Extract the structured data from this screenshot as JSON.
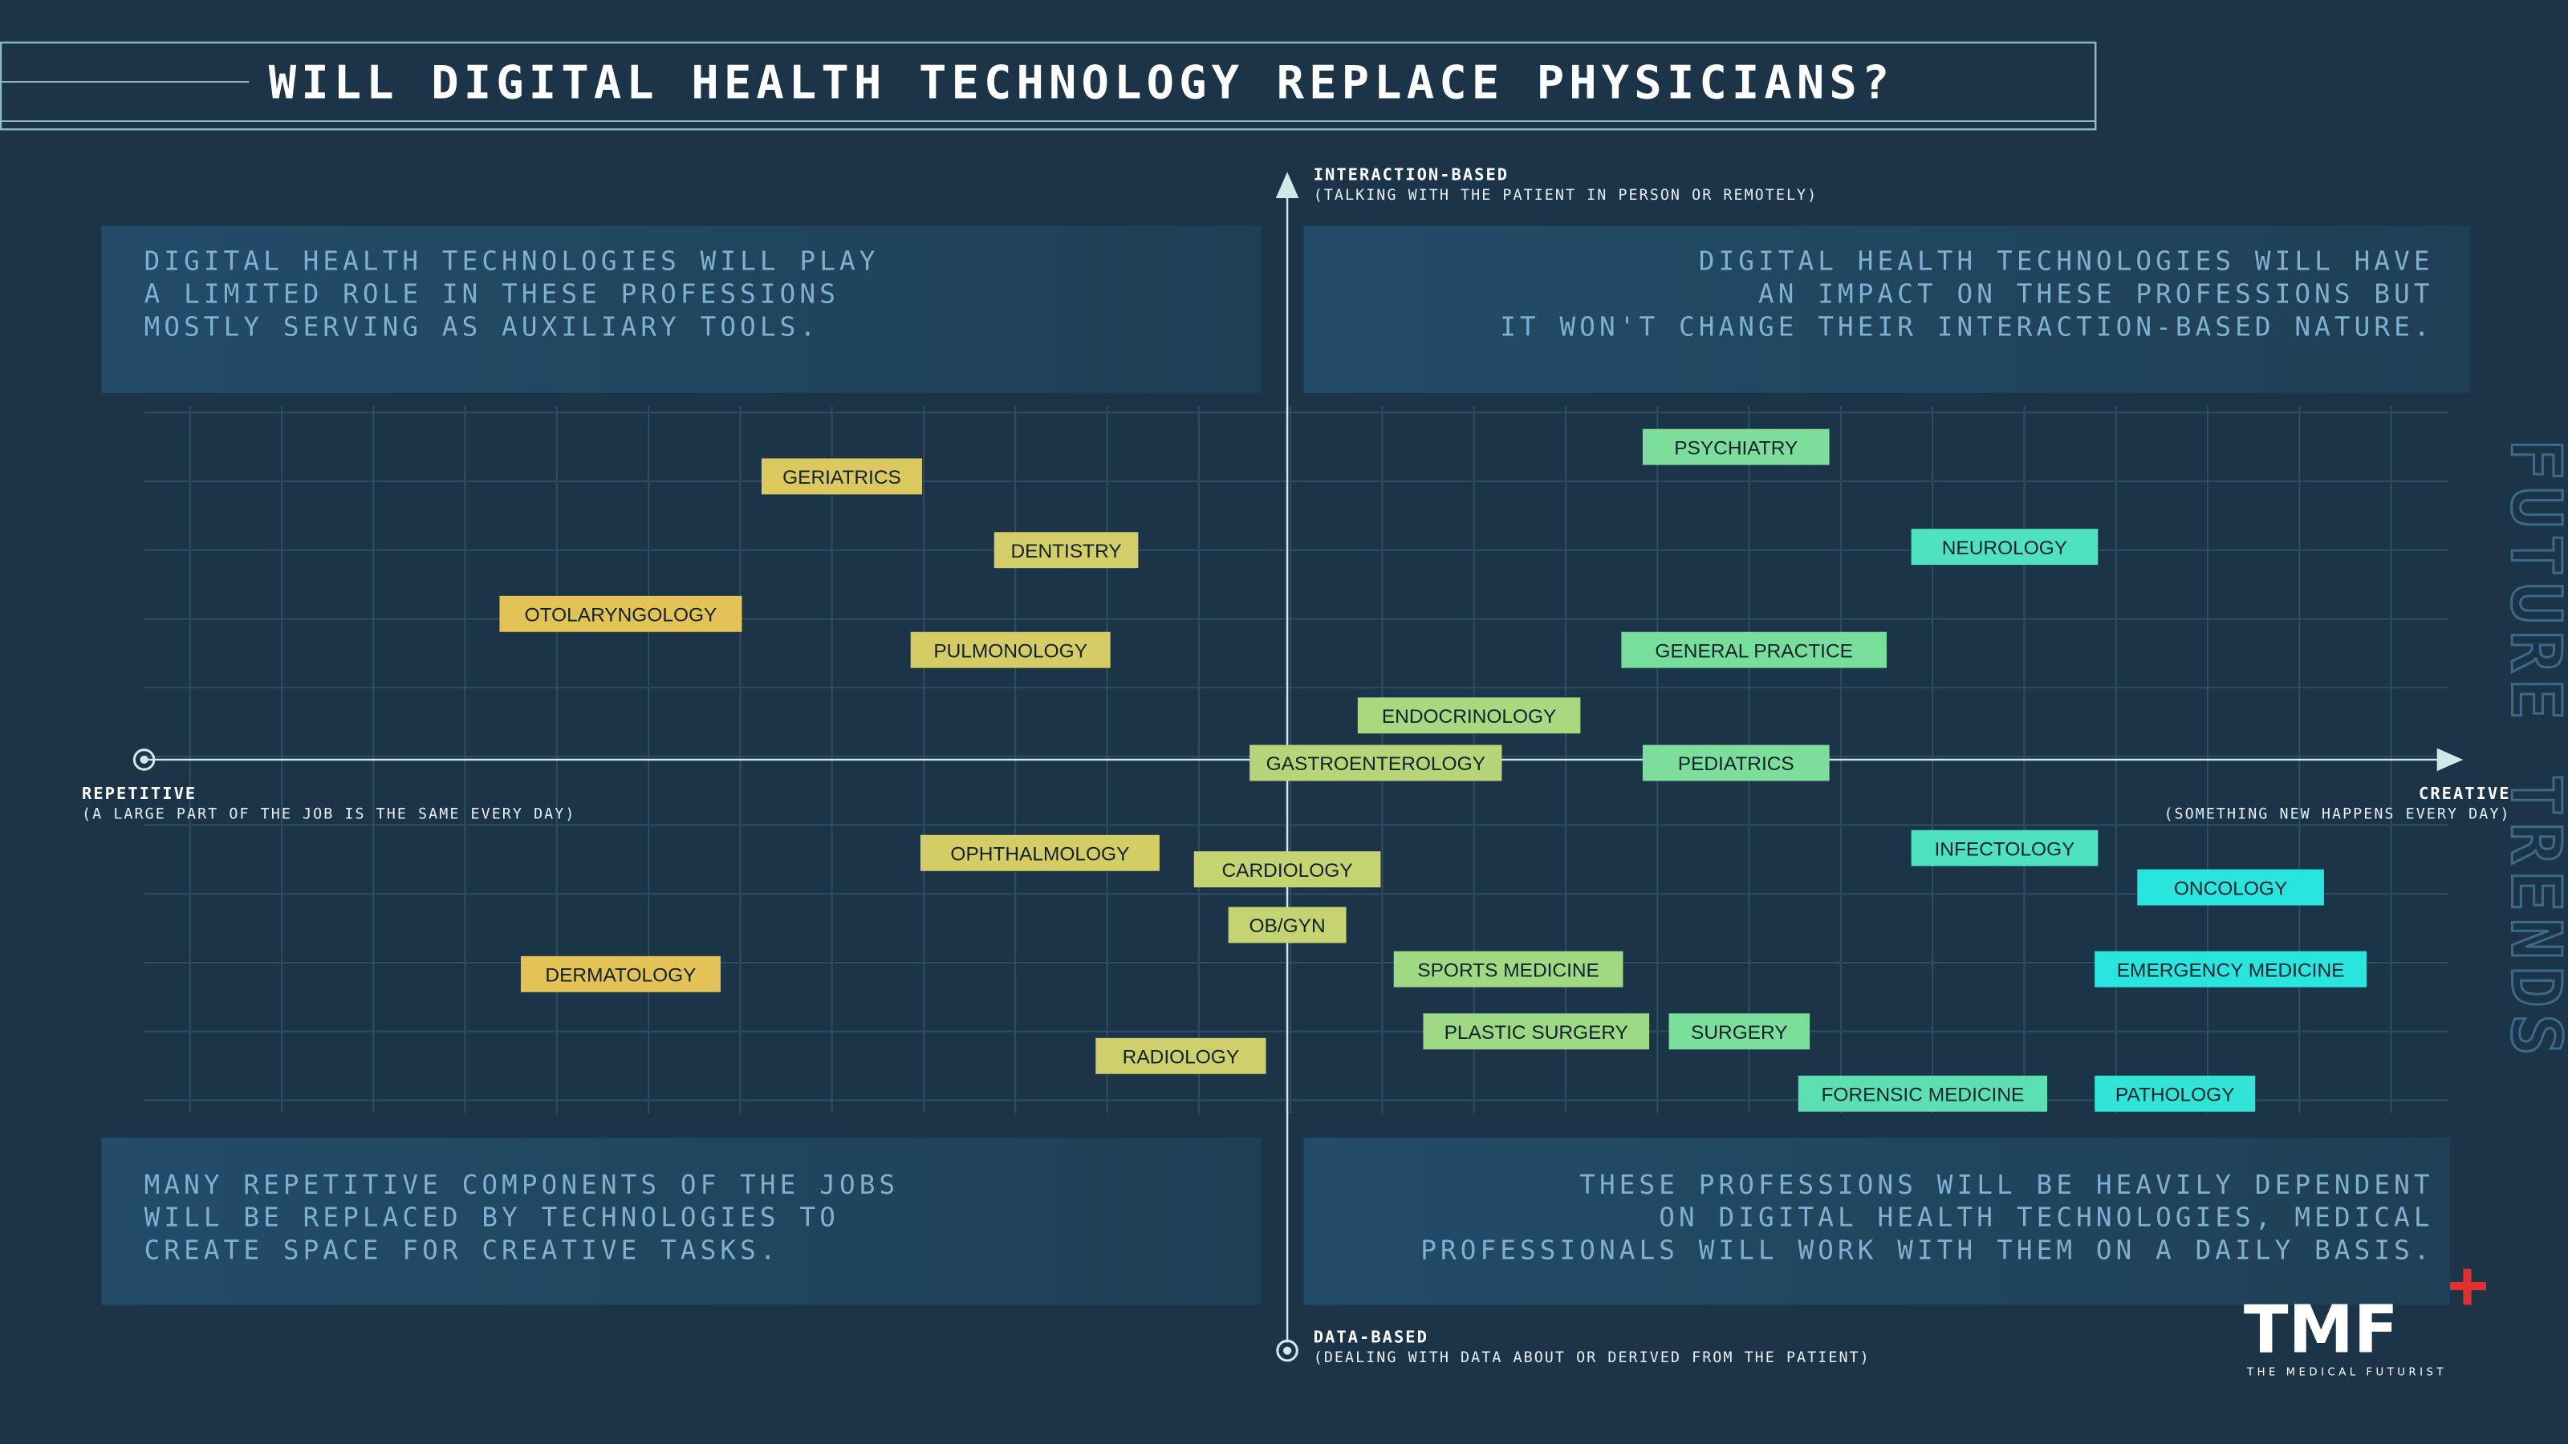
{
  "title": "WILL DIGITAL HEALTH TECHNOLOGY REPLACE PHYSICIANS?",
  "axes": {
    "top": {
      "label": "INTERACTION-BASED",
      "note": "(TALKING WITH THE PATIENT IN PERSON OR REMOTELY)"
    },
    "bottom": {
      "label": "DATA-BASED",
      "note": "(DEALING WITH DATA ABOUT OR DERIVED FROM THE PATIENT)"
    },
    "left": {
      "label": "REPETITIVE",
      "note": "(A LARGE PART OF THE JOB IS THE SAME EVERY DAY)"
    },
    "right": {
      "label": "CREATIVE",
      "note": "(SOMETHING NEW HAPPENS EVERY DAY)"
    }
  },
  "quadrants": [
    {
      "lines": [
        "DIGITAL HEALTH TECHNOLOGIES WILL PLAY",
        "A LIMITED ROLE IN THESE PROFESSIONS",
        "MOSTLY SERVING AS AUXILIARY TOOLS."
      ]
    },
    {
      "lines": [
        "DIGITAL HEALTH TECHNOLOGIES WILL HAVE",
        "AN IMPACT ON THESE PROFESSIONS BUT",
        "IT WON'T CHANGE THEIR INTERACTION-BASED NATURE."
      ]
    },
    {
      "lines": [
        "MANY REPETITIVE COMPONENTS OF THE JOBS",
        "WILL BE REPLACED BY TECHNOLOGIES TO",
        "CREATE SPACE FOR CREATIVE TASKS."
      ]
    },
    {
      "lines": [
        "THESE PROFESSIONS WILL BE HEAVILY DEPENDENT",
        "ON DIGITAL HEALTH TECHNOLOGIES, MEDICAL",
        "PROFESSIONALS WILL WORK WITH THEM ON A DAILY BASIS."
      ]
    }
  ],
  "nodes": [
    {
      "label": "GERIATRICS"
    },
    {
      "label": "DENTISTRY"
    },
    {
      "label": "OTOLARYNGOLOGY"
    },
    {
      "label": "PULMONOLOGY"
    },
    {
      "label": "PSYCHIATRY"
    },
    {
      "label": "NEUROLOGY"
    },
    {
      "label": "GENERAL PRACTICE"
    },
    {
      "label": "ENDOCRINOLOGY"
    },
    {
      "label": "GASTROENTEROLOGY"
    },
    {
      "label": "PEDIATRICS"
    },
    {
      "label": "OPHTHALMOLOGY"
    },
    {
      "label": "CARDIOLOGY"
    },
    {
      "label": "INFECTOLOGY"
    },
    {
      "label": "ONCOLOGY"
    },
    {
      "label": "OB/GYN"
    },
    {
      "label": "DERMATOLOGY"
    },
    {
      "label": "SPORTS MEDICINE"
    },
    {
      "label": "EMERGENCY MEDICINE"
    },
    {
      "label": "PLASTIC SURGERY"
    },
    {
      "label": "SURGERY"
    },
    {
      "label": "RADIOLOGY"
    },
    {
      "label": "FORENSIC MEDICINE"
    },
    {
      "label": "PATHOLOGY"
    }
  ],
  "watermark": "FUTURE TRENDS",
  "logo": {
    "mark": "TMF",
    "name": "THE MEDICAL FUTURIST"
  }
}
